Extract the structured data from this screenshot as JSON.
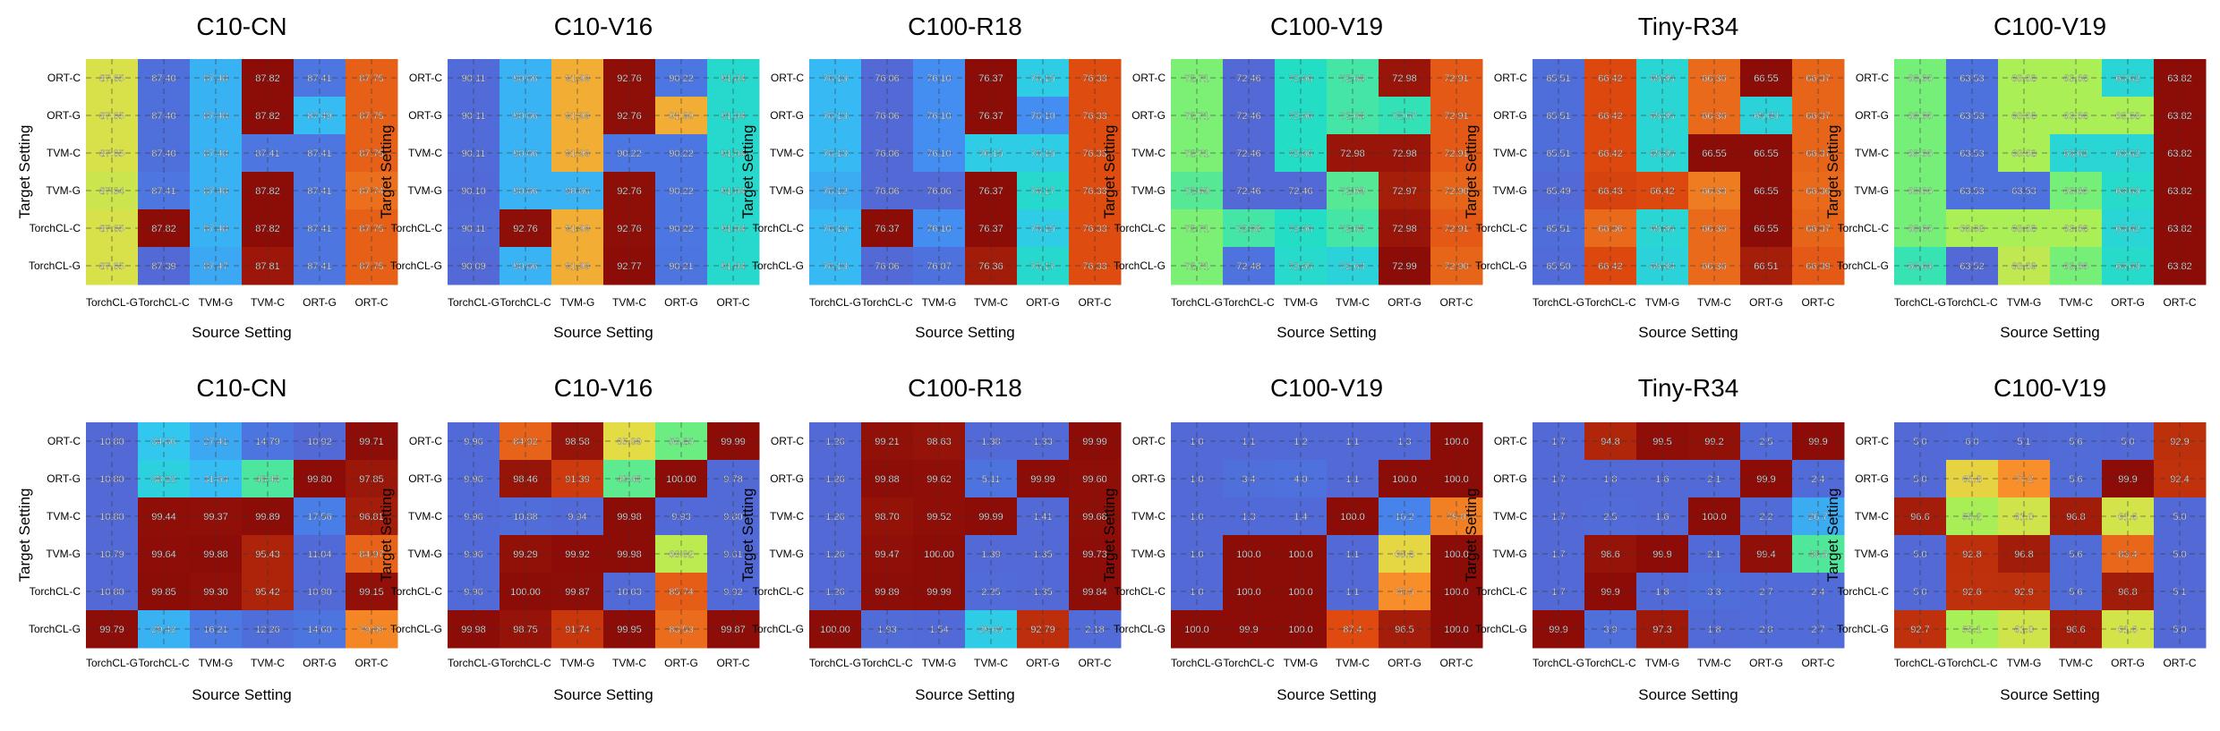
{
  "chart_data": [
    {
      "type": "heatmap",
      "title": "C10-CN",
      "xlabel": "Source Setting",
      "ylabel": "Target Setting",
      "x": [
        "TorchCL-G",
        "TorchCL-C",
        "TVM-G",
        "TVM-C",
        "ORT-G",
        "ORT-C"
      ],
      "y": [
        "ORT-C",
        "ORT-G",
        "TVM-C",
        "TVM-G",
        "TorchCL-C",
        "TorchCL-G"
      ],
      "z": [
        [
          "87.65",
          "87.40",
          "87.48",
          "87.82",
          "87.41",
          "87.75"
        ],
        [
          "87.65",
          "87.40",
          "87.48",
          "87.82",
          "87.49",
          "87.75"
        ],
        [
          "87.65",
          "87.40",
          "87.48",
          "87.41",
          "87.41",
          "87.75"
        ],
        [
          "87.64",
          "87.41",
          "87.48",
          "87.82",
          "87.41",
          "87.74"
        ],
        [
          "87.65",
          "87.82",
          "87.48",
          "87.82",
          "87.41",
          "87.75"
        ],
        [
          "87.65",
          "87.39",
          "87.47",
          "87.81",
          "87.41",
          "87.75"
        ]
      ]
    },
    {
      "type": "heatmap",
      "title": "C10-V16",
      "xlabel": "Source Setting",
      "ylabel": "Target Setting",
      "x": [
        "TorchCL-G",
        "TorchCL-C",
        "TVM-G",
        "TVM-C",
        "ORT-G",
        "ORT-C"
      ],
      "y": [
        "ORT-C",
        "ORT-G",
        "TVM-C",
        "TVM-G",
        "TorchCL-C",
        "TorchCL-G"
      ],
      "z": [
        [
          "90.11",
          "90.66",
          "91.99",
          "92.76",
          "90.22",
          "91.04"
        ],
        [
          "90.11",
          "90.66",
          "91.99",
          "92.76",
          "91.99",
          "91.04"
        ],
        [
          "90.11",
          "90.66",
          "91.99",
          "90.22",
          "90.22",
          "91.04"
        ],
        [
          "90.10",
          "90.66",
          "90.66",
          "92.76",
          "90.22",
          "91.04"
        ],
        [
          "90.11",
          "92.76",
          "91.99",
          "92.76",
          "90.22",
          "91.04"
        ],
        [
          "90.09",
          "90.66",
          "91.99",
          "92.77",
          "90.21",
          "91.04"
        ]
      ]
    },
    {
      "type": "heatmap",
      "title": "C100-R18",
      "xlabel": "Source Setting",
      "ylabel": "Target Setting",
      "x": [
        "TorchCL-G",
        "TorchCL-C",
        "TVM-G",
        "TVM-C",
        "ORT-G",
        "ORT-C"
      ],
      "y": [
        "ORT-C",
        "ORT-G",
        "TVM-C",
        "TVM-G",
        "TorchCL-C",
        "TorchCL-G"
      ],
      "z": [
        [
          "76.13",
          "76.06",
          "76.10",
          "76.37",
          "76.15",
          "76.33"
        ],
        [
          "76.13",
          "76.06",
          "76.10",
          "76.37",
          "76.10",
          "76.33"
        ],
        [
          "76.13",
          "76.06",
          "76.10",
          "76.15",
          "76.15",
          "76.33"
        ],
        [
          "76.12",
          "76.06",
          "76.06",
          "76.37",
          "76.17",
          "76.33"
        ],
        [
          "76.13",
          "76.37",
          "76.10",
          "76.37",
          "76.15",
          "76.33"
        ],
        [
          "76.13",
          "76.06",
          "76.07",
          "76.36",
          "76.17",
          "76.33"
        ]
      ]
    },
    {
      "type": "heatmap",
      "title": "C100-V19",
      "xlabel": "Source Setting",
      "ylabel": "Target Setting",
      "x": [
        "TorchCL-G",
        "TorchCL-C",
        "TVM-G",
        "TVM-C",
        "ORT-G",
        "ORT-C"
      ],
      "y": [
        "ORT-C",
        "ORT-G",
        "TVM-C",
        "TVM-G",
        "TorchCL-C",
        "TorchCL-G"
      ],
      "z": [
        [
          "72.71",
          "72.46",
          "72.66",
          "72.68",
          "72.98",
          "72.91"
        ],
        [
          "72.71",
          "72.46",
          "72.66",
          "72.68",
          "72.67",
          "72.91"
        ],
        [
          "72.71",
          "72.46",
          "72.66",
          "72.98",
          "72.98",
          "72.91"
        ],
        [
          "72.69",
          "72.46",
          "72.46",
          "72.69",
          "72.97",
          "72.90"
        ],
        [
          "72.71",
          "72.68",
          "72.66",
          "72.68",
          "72.98",
          "72.91"
        ],
        [
          "72.71",
          "72.48",
          "72.65",
          "72.63",
          "72.99",
          "72.90"
        ]
      ]
    },
    {
      "type": "heatmap",
      "title": "Tiny-R34",
      "xlabel": "Source Setting",
      "ylabel": "Target Setting",
      "x": [
        "TorchCL-G",
        "TorchCL-C",
        "TVM-G",
        "TVM-C",
        "ORT-G",
        "ORT-C"
      ],
      "y": [
        "ORT-C",
        "ORT-G",
        "TVM-C",
        "TVM-G",
        "TorchCL-C",
        "TorchCL-G"
      ],
      "z": [
        [
          "65.51",
          "66.42",
          "65.85",
          "66.36",
          "66.55",
          "66.37"
        ],
        [
          "65.51",
          "66.42",
          "65.85",
          "66.36",
          "65.83",
          "66.37"
        ],
        [
          "65.51",
          "66.42",
          "65.85",
          "66.55",
          "66.55",
          "66.37"
        ],
        [
          "65.49",
          "66.43",
          "66.42",
          "66.33",
          "66.55",
          "66.36"
        ],
        [
          "65.51",
          "66.36",
          "65.85",
          "66.36",
          "66.55",
          "66.37"
        ],
        [
          "65.50",
          "66.42",
          "65.83",
          "66.36",
          "66.51",
          "66.39"
        ]
      ]
    },
    {
      "type": "heatmap",
      "title": "C100-V19",
      "xlabel": "Source Setting",
      "ylabel": "Target Setting",
      "x": [
        "TorchCL-G",
        "TorchCL-C",
        "TVM-G",
        "TVM-C",
        "ORT-G",
        "ORT-C"
      ],
      "y": [
        "ORT-C",
        "ORT-G",
        "TVM-C",
        "TVM-G",
        "TorchCL-C",
        "TorchCL-G"
      ],
      "z": [
        [
          "63.66",
          "63.53",
          "63.68",
          "63.68",
          "63.62",
          "63.82"
        ],
        [
          "63.66",
          "63.53",
          "63.68",
          "63.68",
          "63.68",
          "63.82"
        ],
        [
          "63.66",
          "63.53",
          "63.68",
          "63.62",
          "63.62",
          "63.82"
        ],
        [
          "63.66",
          "63.53",
          "63.53",
          "63.66",
          "63.63",
          "63.82"
        ],
        [
          "63.66",
          "63.68",
          "63.68",
          "63.68",
          "63.62",
          "63.82"
        ],
        [
          "63.64",
          "63.52",
          "63.69",
          "63.66",
          "63.63",
          "63.82"
        ]
      ]
    },
    {
      "type": "heatmap",
      "title": "C10-CN",
      "xlabel": "Source Setting",
      "ylabel": "Target Setting",
      "x": [
        "TorchCL-G",
        "TorchCL-C",
        "TVM-G",
        "TVM-C",
        "ORT-G",
        "ORT-C"
      ],
      "y": [
        "ORT-C",
        "ORT-G",
        "TVM-C",
        "TVM-G",
        "TorchCL-C",
        "TorchCL-G"
      ],
      "z": [
        [
          "10.80",
          "34.60",
          "27.41",
          "14.79",
          "10.92",
          "99.71"
        ],
        [
          "10.80",
          "38.22",
          "31.63",
          "48.48",
          "99.80",
          "97.85"
        ],
        [
          "10.80",
          "99.44",
          "99.37",
          "99.89",
          "17.56",
          "96.81"
        ],
        [
          "10.79",
          "99.64",
          "99.88",
          "95.43",
          "11.04",
          "84.97"
        ],
        [
          "10.80",
          "99.85",
          "99.30",
          "95.42",
          "10.90",
          "99.15"
        ],
        [
          "99.79",
          "29.42",
          "16.21",
          "12.26",
          "14.60",
          "79.89"
        ]
      ]
    },
    {
      "type": "heatmap",
      "title": "C10-V16",
      "xlabel": "Source Setting",
      "ylabel": "Target Setting",
      "x": [
        "TorchCL-G",
        "TorchCL-C",
        "TVM-G",
        "TVM-C",
        "ORT-G",
        "ORT-C"
      ],
      "y": [
        "ORT-C",
        "ORT-G",
        "TVM-C",
        "TVM-G",
        "TorchCL-C",
        "TorchCL-G"
      ],
      "z": [
        [
          "9.96",
          "84.92",
          "98.58",
          "65.99",
          "50.85",
          "99.99"
        ],
        [
          "9.96",
          "98.46",
          "91.39",
          "49.48",
          "100.00",
          "9.78"
        ],
        [
          "9.96",
          "10.88",
          "9.94",
          "99.98",
          "9.93",
          "9.80"
        ],
        [
          "9.96",
          "99.29",
          "99.92",
          "99.98",
          "60.02",
          "9.61"
        ],
        [
          "9.96",
          "100.00",
          "99.87",
          "10.03",
          "85.74",
          "9.92"
        ],
        [
          "99.98",
          "98.75",
          "91.74",
          "99.95",
          "83.53",
          "99.87"
        ]
      ]
    },
    {
      "type": "heatmap",
      "title": "C100-R18",
      "xlabel": "Source Setting",
      "ylabel": "Target Setting",
      "x": [
        "TorchCL-G",
        "TorchCL-C",
        "TVM-G",
        "TVM-C",
        "ORT-G",
        "ORT-C"
      ],
      "y": [
        "ORT-C",
        "ORT-G",
        "TVM-C",
        "TVM-G",
        "TorchCL-C",
        "TorchCL-G"
      ],
      "z": [
        [
          "1.26",
          "99.21",
          "98.63",
          "1.38",
          "1.33",
          "99.99"
        ],
        [
          "1.26",
          "99.88",
          "99.62",
          "5.11",
          "99.99",
          "99.60"
        ],
        [
          "1.26",
          "98.70",
          "99.52",
          "99.99",
          "1.41",
          "99.68"
        ],
        [
          "1.26",
          "99.47",
          "100.00",
          "1.39",
          "1.35",
          "99.73"
        ],
        [
          "1.26",
          "99.89",
          "99.99",
          "2.25",
          "1.35",
          "99.84"
        ],
        [
          "100.00",
          "1.93",
          "1.54",
          "29.65",
          "92.79",
          "2.18"
        ]
      ]
    },
    {
      "type": "heatmap",
      "title": "C100-V19",
      "xlabel": "Source Setting",
      "ylabel": "Target Setting",
      "x": [
        "TorchCL-G",
        "TorchCL-C",
        "TVM-G",
        "TVM-C",
        "ORT-G",
        "ORT-C"
      ],
      "y": [
        "ORT-C",
        "ORT-G",
        "TVM-C",
        "TVM-G",
        "TorchCL-C",
        "TorchCL-G"
      ],
      "z": [
        [
          "1.0",
          "1.1",
          "1.2",
          "1.1",
          "1.3",
          "100.0"
        ],
        [
          "1.0",
          "3.4",
          "4.0",
          "1.1",
          "100.0",
          "100.0"
        ],
        [
          "1.0",
          "1.3",
          "1.4",
          "100.0",
          "10.2",
          "79.0"
        ],
        [
          "1.0",
          "100.0",
          "100.0",
          "1.1",
          "63.8",
          "100.0"
        ],
        [
          "1.0",
          "100.0",
          "100.0",
          "1.1",
          "76.5",
          "100.0"
        ],
        [
          "100.0",
          "99.9",
          "100.0",
          "87.4",
          "96.5",
          "100.0"
        ]
      ]
    },
    {
      "type": "heatmap",
      "title": "Tiny-R34",
      "xlabel": "Source Setting",
      "ylabel": "Target Setting",
      "x": [
        "TorchCL-G",
        "TorchCL-C",
        "TVM-G",
        "TVM-C",
        "ORT-G",
        "ORT-C"
      ],
      "y": [
        "ORT-C",
        "ORT-G",
        "TVM-C",
        "TVM-G",
        "TorchCL-C",
        "TorchCL-G"
      ],
      "z": [
        [
          "1.7",
          "94.8",
          "99.5",
          "99.2",
          "2.5",
          "99.9"
        ],
        [
          "1.7",
          "1.8",
          "1.6",
          "2.1",
          "99.9",
          "2.4"
        ],
        [
          "1.7",
          "2.5",
          "1.6",
          "100.0",
          "2.2",
          "20.7"
        ],
        [
          "1.7",
          "98.6",
          "99.9",
          "2.1",
          "99.4",
          "43.6"
        ],
        [
          "1.7",
          "99.9",
          "1.8",
          "3.3",
          "2.7",
          "2.4"
        ],
        [
          "99.9",
          "3.9",
          "97.3",
          "1.8",
          "2.8",
          "2.7"
        ]
      ]
    },
    {
      "type": "heatmap",
      "title": "C100-V19",
      "xlabel": "Source Setting",
      "ylabel": "Target Setting",
      "x": [
        "TorchCL-G",
        "TorchCL-C",
        "TVM-G",
        "TVM-C",
        "ORT-G",
        "ORT-C"
      ],
      "y": [
        "ORT-C",
        "ORT-G",
        "TVM-C",
        "TVM-G",
        "TorchCL-C",
        "TorchCL-G"
      ],
      "z": [
        [
          "5.0",
          "6.0",
          "5.1",
          "5.6",
          "5.0",
          "92.9"
        ],
        [
          "5.0",
          "65.8",
          "77.2",
          "5.6",
          "99.9",
          "92.4"
        ],
        [
          "96.6",
          "55.2",
          "61.0",
          "96.8",
          "61.6",
          "5.0"
        ],
        [
          "5.0",
          "92.8",
          "96.8",
          "5.6",
          "83.4",
          "5.0"
        ],
        [
          "5.0",
          "92.6",
          "92.9",
          "5.6",
          "96.8",
          "5.1"
        ],
        [
          "92.7",
          "55.1",
          "61.0",
          "96.6",
          "61.6",
          "5.0"
        ]
      ]
    }
  ]
}
